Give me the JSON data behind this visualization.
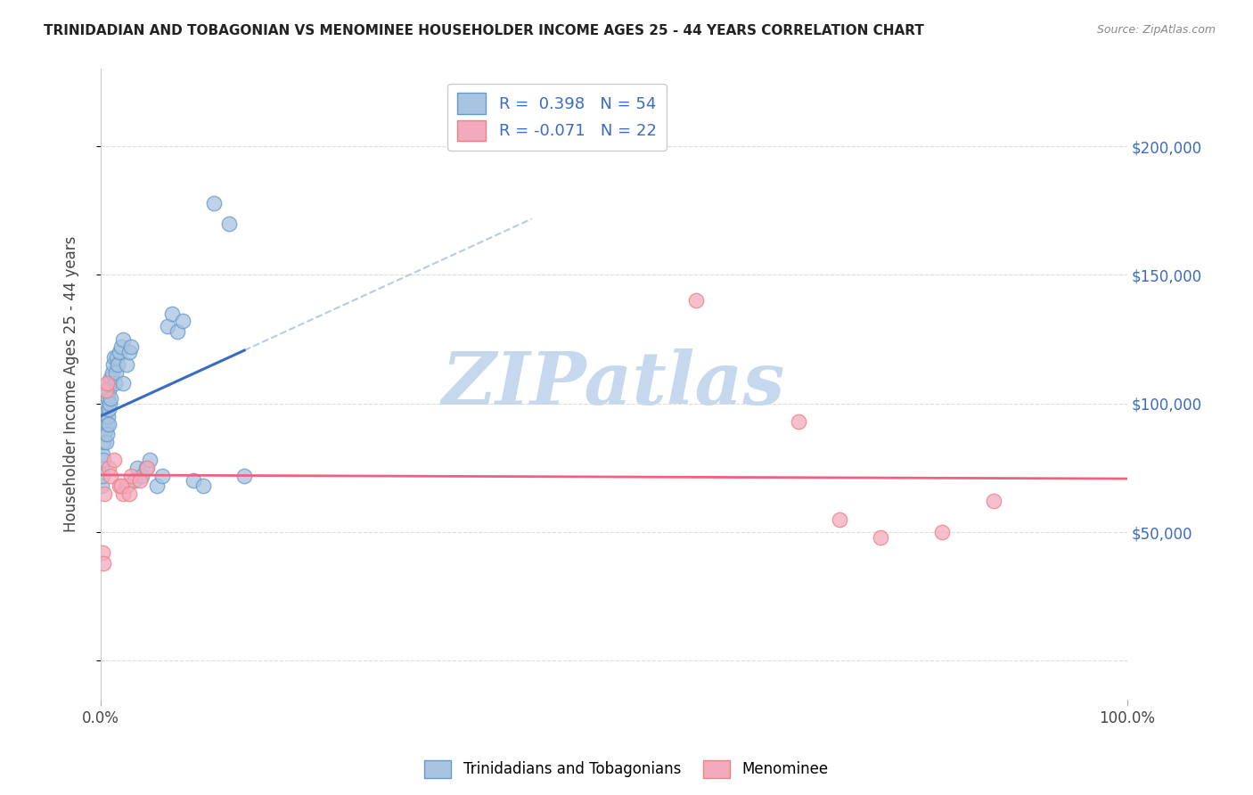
{
  "title": "TRINIDADIAN AND TOBAGONIAN VS MENOMINEE HOUSEHOLDER INCOME AGES 25 - 44 YEARS CORRELATION CHART",
  "source": "Source: ZipAtlas.com",
  "ylabel": "Householder Income Ages 25 - 44 years",
  "xlim": [
    0,
    1.0
  ],
  "ylim": [
    -15000,
    230000
  ],
  "yticks": [
    0,
    50000,
    100000,
    150000,
    200000
  ],
  "xticks": [
    0.0,
    1.0
  ],
  "xtick_labels": [
    "0.0%",
    "100.0%"
  ],
  "right_ytick_labels": [
    "$200,000",
    "$150,000",
    "$100,000",
    "$50,000"
  ],
  "right_ytick_vals": [
    200000,
    150000,
    100000,
    50000
  ],
  "legend_line1": "R =  0.398   N = 54",
  "legend_line2": "R = -0.071   N = 22",
  "blue_color": "#A8C4E0",
  "pink_color": "#F4AABD",
  "blue_edge_color": "#6699CC",
  "pink_edge_color": "#F08080",
  "blue_line_color": "#3A6BC4",
  "pink_line_color": "#F06080",
  "dash_color": "#B8CCDD",
  "legend_text_color": "#3A6BC4",
  "watermark_color": "#C5D8EE",
  "grid_color": "#DDDDDD",
  "blue_scatter_x": [
    0.001,
    0.001,
    0.002,
    0.002,
    0.003,
    0.003,
    0.003,
    0.004,
    0.004,
    0.005,
    0.005,
    0.005,
    0.006,
    0.006,
    0.006,
    0.007,
    0.007,
    0.008,
    0.008,
    0.008,
    0.009,
    0.009,
    0.01,
    0.01,
    0.011,
    0.012,
    0.013,
    0.014,
    0.015,
    0.016,
    0.017,
    0.018,
    0.02,
    0.022,
    0.025,
    0.028,
    0.03,
    0.033,
    0.036,
    0.04,
    0.044,
    0.048,
    0.055,
    0.06,
    0.065,
    0.07,
    0.075,
    0.08,
    0.09,
    0.1,
    0.11,
    0.125,
    0.14,
    0.022
  ],
  "blue_scatter_y": [
    75000,
    68000,
    80000,
    72000,
    85000,
    78000,
    92000,
    88000,
    95000,
    90000,
    98000,
    85000,
    100000,
    92000,
    88000,
    102000,
    95000,
    105000,
    98000,
    92000,
    108000,
    100000,
    110000,
    102000,
    112000,
    115000,
    118000,
    108000,
    112000,
    118000,
    115000,
    120000,
    122000,
    125000,
    115000,
    120000,
    122000,
    70000,
    75000,
    72000,
    75000,
    78000,
    68000,
    72000,
    130000,
    135000,
    128000,
    132000,
    70000,
    68000,
    178000,
    170000,
    72000,
    108000
  ],
  "pink_scatter_x": [
    0.002,
    0.003,
    0.004,
    0.005,
    0.006,
    0.008,
    0.01,
    0.013,
    0.018,
    0.022,
    0.025,
    0.03,
    0.038,
    0.045,
    0.02,
    0.028,
    0.58,
    0.68,
    0.72,
    0.76,
    0.82,
    0.87
  ],
  "pink_scatter_y": [
    42000,
    38000,
    65000,
    105000,
    108000,
    75000,
    72000,
    78000,
    68000,
    65000,
    68000,
    72000,
    70000,
    75000,
    68000,
    65000,
    140000,
    93000,
    55000,
    48000,
    50000,
    62000
  ]
}
